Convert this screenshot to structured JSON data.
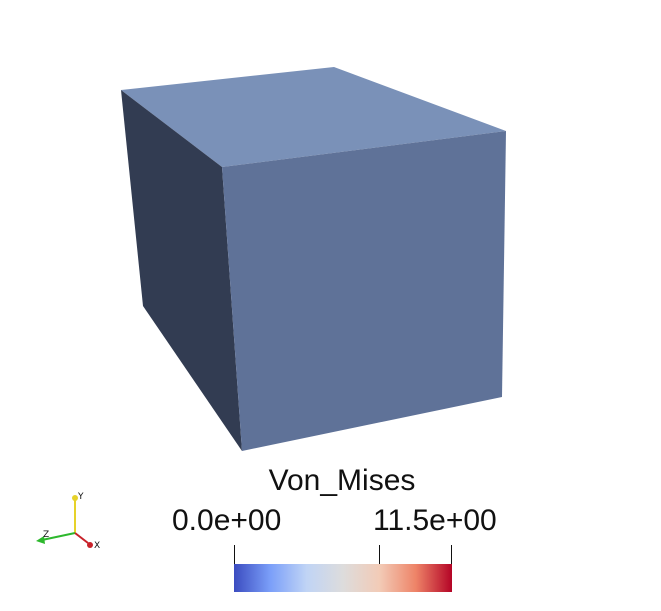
{
  "scalar_bar": {
    "title": "Von_Mises",
    "min_label": "0.0e+00",
    "max_label": "11.5e+00",
    "colormap": [
      "#3b4cc0",
      "#7b9ff9",
      "#c0d4f5",
      "#dddcdc",
      "#f2cbb7",
      "#ee8468",
      "#b40426"
    ]
  },
  "orientation_axes": {
    "x_label": "X",
    "y_label": "Y",
    "z_label": "Z",
    "x_color": "#c8222a",
    "y_color": "#e6d22a",
    "z_color": "#2db82d"
  },
  "object": {
    "shape": "box",
    "top_face_color": "#7a91b8",
    "front_face_color": "#5f7298",
    "side_face_color": "#323c52"
  }
}
